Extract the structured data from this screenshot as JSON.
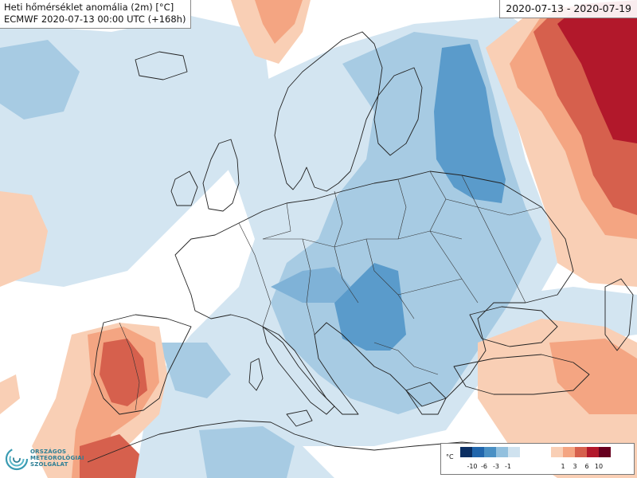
{
  "title": {
    "line1": "Heti hőmérséklet anomália (2m) [°C]",
    "line2": "ECMWF 2020-07-13 00:00 UTC (+168h)"
  },
  "date_range": "2020-07-13 - 2020-07-19",
  "logo": {
    "line1": "ORSZÁGOS",
    "line2": "METEOROLÓGIAI",
    "line3": "SZOLGÁLAT"
  },
  "legend": {
    "unit": "°C",
    "cold_ticks": [
      "-10",
      "-6",
      "-3",
      "-1"
    ],
    "warm_ticks": [
      "1",
      "3",
      "6",
      "10"
    ],
    "cold_colors": [
      "#0b2f63",
      "#2166ac",
      "#4a90c4",
      "#92c0de",
      "#cfe2ef"
    ],
    "warm_colors": [
      "#f9cfb5",
      "#f4a582",
      "#d6604d",
      "#b2182b",
      "#67001f"
    ]
  }
}
